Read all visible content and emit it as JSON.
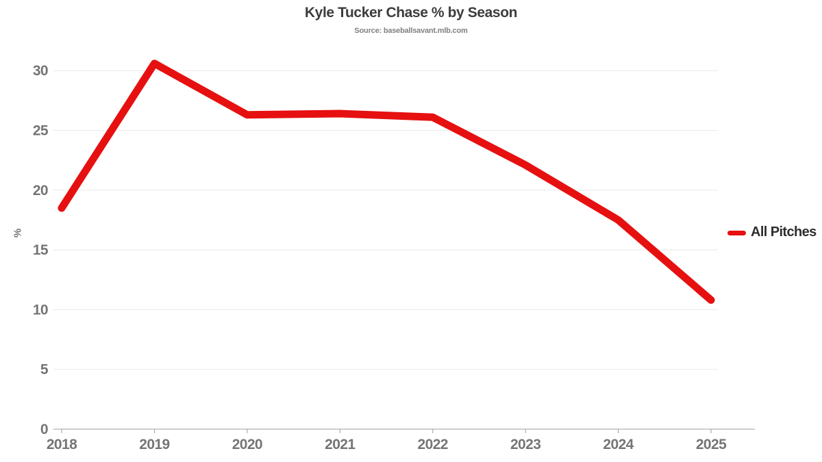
{
  "chart_data": {
    "type": "line",
    "title": "Kyle Tucker Chase % by Season",
    "subtitle": "Source: baseballsavant.mlb.com",
    "xlabel": "",
    "ylabel": "%",
    "categories": [
      "2018",
      "2019",
      "2020",
      "2021",
      "2022",
      "2023",
      "2024",
      "2025"
    ],
    "series": [
      {
        "name": "All Pitches",
        "values": [
          18.5,
          30.6,
          26.3,
          26.4,
          26.1,
          22.1,
          17.5,
          10.8
        ],
        "color": "#e61010"
      }
    ],
    "yticks": [
      0,
      5,
      10,
      15,
      20,
      25,
      30
    ],
    "ylim": [
      0,
      31.6
    ],
    "grid": "horizontal",
    "legend_position": "right",
    "colors": {
      "gridline": "#e8e8e8",
      "axis_line": "#9e9e9e",
      "tick_label": "#757575",
      "title_text": "#3c3c3c",
      "subtitle_text": "#808080",
      "legend_text": "#2e2e2e",
      "background": "#ffffff"
    }
  }
}
